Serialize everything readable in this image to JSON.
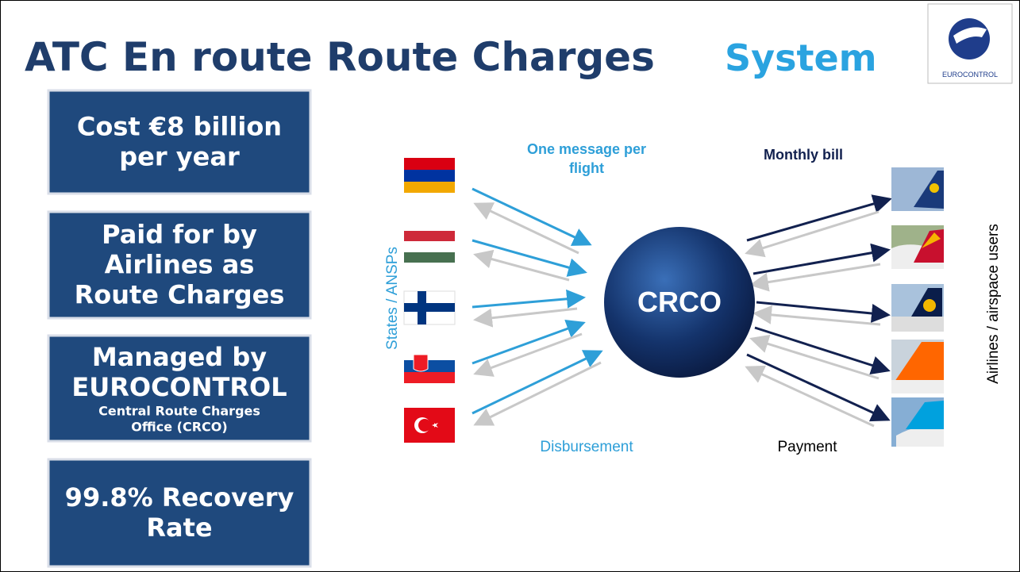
{
  "header": {
    "title": "ATC En route Route Charges",
    "highlight": "System",
    "logo": "EUROCONTROL"
  },
  "boxes": [
    {
      "lines": [
        "Cost €8 billion",
        "per year"
      ]
    },
    {
      "lines": [
        "Paid for by",
        "Airlines as",
        "Route Charges"
      ]
    },
    {
      "lines": [
        "Managed by",
        "EUROCONTROL"
      ],
      "sub": [
        "Central Route Charges",
        "Office (CRCO)"
      ]
    },
    {
      "lines": [
        "99.8% Recovery",
        "Rate"
      ]
    }
  ],
  "diagram": {
    "center": "CRCO",
    "message": [
      "One message per",
      "flight"
    ],
    "bill": "Monthly bill",
    "states": "States / ANSPs",
    "disbursement": "Disbursement",
    "payment": "Payment",
    "airlines": "Airlines / airspace users"
  }
}
